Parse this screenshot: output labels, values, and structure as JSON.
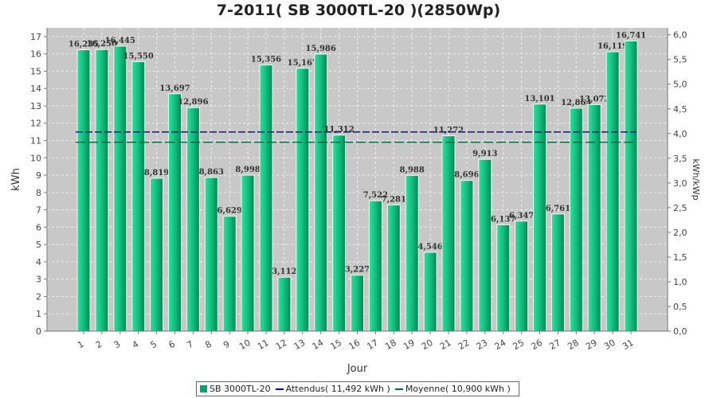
{
  "chart_data": {
    "type": "bar",
    "title": "7-2011( SB 3000TL-20 )(2850Wp)",
    "xlabel": "Jour",
    "ylabel": "kWh",
    "ylabel_right": "kWh/kWp",
    "categories": [
      "1",
      "2",
      "3",
      "4",
      "5",
      "6",
      "7",
      "8",
      "9",
      "10",
      "11",
      "12",
      "13",
      "14",
      "15",
      "16",
      "17",
      "18",
      "19",
      "20",
      "21",
      "22",
      "23",
      "24",
      "25",
      "26",
      "27",
      "28",
      "29",
      "30",
      "31"
    ],
    "series": [
      {
        "name": "SB 3000TL-20",
        "values": [
          16.235,
          16.25,
          16.445,
          15.55,
          8.819,
          13.697,
          12.896,
          8.863,
          6.629,
          8.998,
          15.356,
          3.112,
          15.167,
          15.986,
          11.312,
          3.227,
          7.522,
          7.281,
          8.988,
          4.546,
          11.272,
          8.696,
          9.913,
          6.137,
          6.347,
          13.101,
          6.761,
          12.864,
          13.072,
          16.119,
          16.741
        ],
        "labels": [
          "16,235",
          "16,250",
          "16,445",
          "15,550",
          "8,819",
          "13,697",
          "12,896",
          "8,863",
          "6,629",
          "8,998",
          "15,356",
          "3,112",
          "15,167",
          "15,986",
          "11,312",
          "3,227",
          "7,522",
          "7,281",
          "8,988",
          "4,546",
          "11,272",
          "8,696",
          "9,913",
          "6,137",
          "6,347",
          "13,101",
          "6,761",
          "12,864",
          "13,072",
          "16,119",
          "16,741"
        ]
      }
    ],
    "reference_lines": [
      {
        "name": "Attendus( 11,492 kWh )",
        "value": 11.492,
        "color": "#0000aa"
      },
      {
        "name": "Moyenne( 10,900 kWh )",
        "value": 10.9,
        "color": "#006644"
      }
    ],
    "ylim": [
      0,
      17.5
    ],
    "yticks": [
      "0",
      "1",
      "2",
      "3",
      "4",
      "5",
      "6",
      "7",
      "8",
      "9",
      "10",
      "11",
      "12",
      "13",
      "14",
      "15",
      "16",
      "17"
    ],
    "ylim_right": [
      0,
      6.14
    ],
    "yticks_right": [
      "0,0",
      "0,5",
      "1,0",
      "1,5",
      "2,0",
      "2,5",
      "3,0",
      "3,5",
      "4,0",
      "4,5",
      "5,0",
      "5,5",
      "6,0"
    ],
    "grid": true,
    "legend_placement": "bottom-center",
    "colors": {
      "plot_background": "#c8c8c8",
      "bar_fill_light": "#33dd99",
      "bar_fill_dark": "#009966",
      "grid": "#eeeeee"
    }
  }
}
